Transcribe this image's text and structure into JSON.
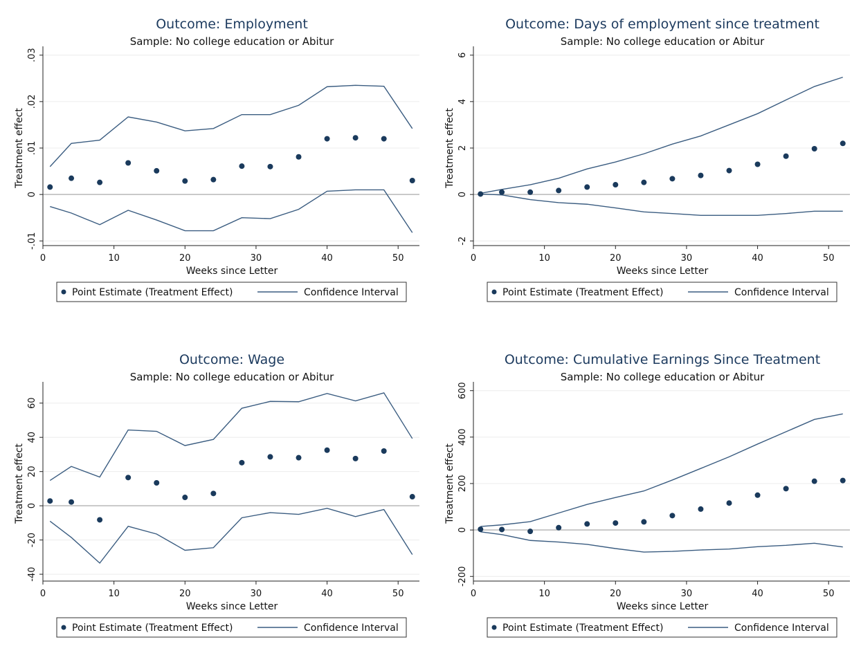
{
  "colors": {
    "series": "#3a5c80",
    "point": "#1a3a5c",
    "zero_line": "#b8b8b8",
    "grid": "#ececec",
    "title": "#1c3a5e"
  },
  "chart_data": [
    {
      "type": "scatter",
      "title": "Outcome: Employment",
      "subtitle": "Sample: No college education or Abitur",
      "xlabel": "Weeks since Letter",
      "ylabel": "Treatment effect",
      "xlim": [
        0,
        53
      ],
      "xticks": [
        0,
        10,
        20,
        30,
        40,
        50
      ],
      "ylim": [
        -0.011,
        0.031
      ],
      "yticks": [
        -0.01,
        0,
        0.01,
        0.02,
        0.03
      ],
      "ytick_labels": [
        "-.01",
        "0",
        ".01",
        ".02",
        ".03"
      ],
      "grid": true,
      "legend_position": "bottom",
      "x": [
        1,
        4,
        8,
        12,
        16,
        20,
        24,
        28,
        32,
        36,
        40,
        44,
        48,
        52
      ],
      "series": [
        {
          "name": "Point Estimate (Treatment Effect)",
          "kind": "points",
          "values": [
            0.0016,
            0.0035,
            0.0026,
            0.0068,
            0.0051,
            0.0029,
            0.0032,
            0.0061,
            0.006,
            0.0081,
            0.012,
            0.0122,
            0.012,
            0.003
          ]
        },
        {
          "name": "Confidence Interval",
          "kind": "line",
          "values": [
            0.006,
            0.011,
            0.0117,
            0.0167,
            0.0156,
            0.0137,
            0.0142,
            0.0172,
            0.0172,
            0.0192,
            0.0232,
            0.0235,
            0.0233,
            0.0142
          ]
        },
        {
          "kind": "line",
          "values": [
            -0.0026,
            -0.004,
            -0.0065,
            -0.0034,
            -0.0055,
            -0.0078,
            -0.0078,
            -0.005,
            -0.0052,
            -0.0032,
            0.0007,
            0.001,
            0.001,
            -0.0082
          ]
        }
      ]
    },
    {
      "type": "scatter",
      "title": "Outcome: Days of employment since treatment",
      "subtitle": "Sample: No college education or Abitur",
      "xlabel": "Weeks since Letter",
      "ylabel": "Treatment effect",
      "xlim": [
        0,
        53
      ],
      "xticks": [
        0,
        10,
        20,
        30,
        40,
        50
      ],
      "ylim": [
        -2.2,
        6.2
      ],
      "yticks": [
        -2,
        0,
        2,
        4,
        6
      ],
      "ytick_labels": [
        "-2",
        "0",
        "2",
        "4",
        "6"
      ],
      "grid": true,
      "legend_position": "bottom",
      "x": [
        1,
        4,
        8,
        12,
        16,
        20,
        24,
        28,
        32,
        36,
        40,
        44,
        48,
        52
      ],
      "series": [
        {
          "name": "Point Estimate (Treatment Effect)",
          "kind": "points",
          "values": [
            0.02,
            0.1,
            0.1,
            0.17,
            0.32,
            0.42,
            0.52,
            0.68,
            0.82,
            1.03,
            1.3,
            1.65,
            1.97,
            2.2
          ]
        },
        {
          "name": "Confidence Interval",
          "kind": "line",
          "values": [
            0.05,
            0.22,
            0.42,
            0.7,
            1.1,
            1.4,
            1.75,
            2.17,
            2.52,
            3.0,
            3.48,
            4.07,
            4.65,
            5.05
          ]
        },
        {
          "kind": "line",
          "values": [
            0.02,
            -0.02,
            -0.22,
            -0.35,
            -0.42,
            -0.58,
            -0.75,
            -0.82,
            -0.9,
            -0.9,
            -0.9,
            -0.82,
            -0.72,
            -0.72
          ]
        }
      ]
    },
    {
      "type": "scatter",
      "title": "Outcome: Wage",
      "subtitle": "Sample: No college education or Abitur",
      "xlabel": "Weeks since Letter",
      "ylabel": "Treatment effect",
      "xlim": [
        0,
        53
      ],
      "xticks": [
        0,
        10,
        20,
        30,
        40,
        50
      ],
      "ylim": [
        -44,
        70
      ],
      "yticks": [
        -40,
        -20,
        0,
        20,
        40,
        60
      ],
      "ytick_labels": [
        "-40",
        "-20",
        "0",
        "20",
        "40",
        "60"
      ],
      "grid": true,
      "legend_position": "bottom",
      "x": [
        1,
        4,
        8,
        12,
        16,
        20,
        24,
        28,
        32,
        36,
        40,
        44,
        48,
        52
      ],
      "series": [
        {
          "name": "Point Estimate (Treatment Effect)",
          "kind": "points",
          "values": [
            2.8,
            2.2,
            -8.2,
            16.5,
            13.4,
            4.9,
            7.2,
            25.2,
            28.6,
            28.1,
            32.5,
            27.6,
            32.0,
            5.3
          ]
        },
        {
          "name": "Confidence Interval",
          "kind": "line",
          "values": [
            14.8,
            23.0,
            16.8,
            44.3,
            43.5,
            35.2,
            38.8,
            57.0,
            61.0,
            60.8,
            65.6,
            61.3,
            66.0,
            39.3
          ]
        },
        {
          "kind": "line",
          "values": [
            -9.0,
            -18.5,
            -33.5,
            -12.0,
            -16.5,
            -26.0,
            -24.5,
            -7.0,
            -4.0,
            -5.0,
            -1.5,
            -6.3,
            -2.2,
            -28.5
          ]
        }
      ]
    },
    {
      "type": "scatter",
      "title": "Outcome: Cumulative Earnings Since Treatment",
      "subtitle": "Sample: No college education or Abitur",
      "xlabel": "Weeks since Letter",
      "ylabel": "Treatment effect",
      "xlim": [
        0,
        53
      ],
      "xticks": [
        0,
        10,
        20,
        30,
        40,
        50
      ],
      "ylim": [
        -220,
        620
      ],
      "yticks": [
        -200,
        0,
        200,
        400,
        600
      ],
      "ytick_labels": [
        "-200",
        "0",
        "200",
        "400",
        "600"
      ],
      "grid": true,
      "legend_position": "bottom",
      "x": [
        1,
        4,
        8,
        12,
        16,
        20,
        24,
        28,
        32,
        36,
        40,
        44,
        48,
        52
      ],
      "series": [
        {
          "name": "Point Estimate (Treatment Effect)",
          "kind": "points",
          "values": [
            3,
            2,
            -6,
            10,
            26,
            30,
            35,
            62,
            90,
            116,
            150,
            178,
            210,
            213
          ]
        },
        {
          "name": "Confidence Interval",
          "kind": "line",
          "values": [
            15,
            22,
            36,
            73,
            110,
            140,
            168,
            215,
            265,
            315,
            370,
            423,
            476,
            500
          ]
        },
        {
          "kind": "line",
          "values": [
            -8,
            -20,
            -45,
            -52,
            -62,
            -80,
            -95,
            -92,
            -86,
            -82,
            -72,
            -66,
            -57,
            -73
          ]
        }
      ]
    }
  ]
}
